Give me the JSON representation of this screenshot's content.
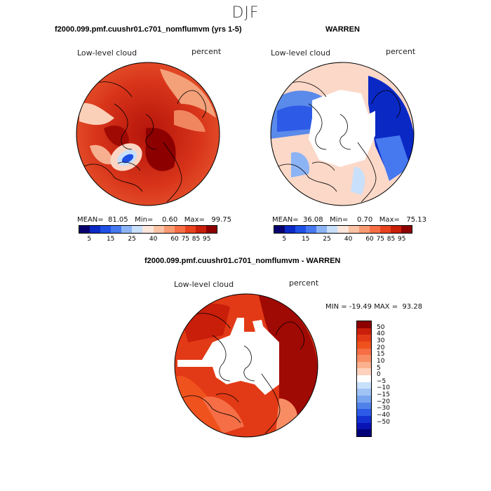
{
  "page": {
    "title": "DJF"
  },
  "panels": {
    "top_left": {
      "title": "f2000.099.pmf.cuushr01.c701_nomflumvm (yrs 1-5)",
      "variable": "Low-level cloud",
      "units": "percent",
      "stats": "MEAN=  81.05   Min=    0.60   Max=   99.75"
    },
    "top_right": {
      "title": "WARREN",
      "variable": "Low-level cloud",
      "units": "percent",
      "stats": "MEAN=  36.08   Min=    0.70   Max=   75.13"
    },
    "bottom": {
      "title": "f2000.099.pmf.cuushr01.c701_nomflumvm - WARREN",
      "variable": "Low-level cloud",
      "units": "percent",
      "stats": "MIN = -19.49 MAX =  93.28"
    }
  },
  "colorbars": {
    "absolute": {
      "colors": [
        "#08006e",
        "#0a28c4",
        "#1e50e6",
        "#4678f0",
        "#8cb4f5",
        "#c8e0fa",
        "#fde6dc",
        "#fbc3a5",
        "#f89a72",
        "#f56e46",
        "#e8421e",
        "#c81e0a",
        "#8c0000"
      ],
      "tick_labels": [
        "5",
        "15",
        "25",
        "40",
        "60",
        "75",
        "85",
        "95"
      ]
    },
    "difference": {
      "colors": [
        "#8c0000",
        "#c81e0a",
        "#e23a16",
        "#f0521e",
        "#f56e46",
        "#f88d64",
        "#fbb08e",
        "#fdd2bc",
        "#ffffff",
        "#c8e0fa",
        "#a0c3f5",
        "#78a5f0",
        "#5082ea",
        "#2d5ae6",
        "#1432d2",
        "#0a14b4",
        "#000078"
      ],
      "labels": [
        "50",
        "40",
        "30",
        "20",
        "15",
        "10",
        "5",
        "0",
        "−5",
        "−10",
        "−15",
        "−20",
        "−30",
        "−40",
        "−50"
      ]
    }
  }
}
